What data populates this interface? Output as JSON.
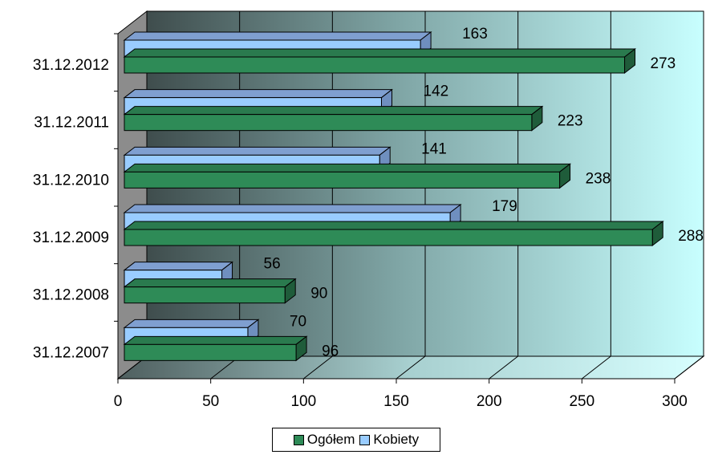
{
  "chart_data": {
    "type": "bar",
    "orientation": "horizontal",
    "three_d": true,
    "categories": [
      "31.12.2007",
      "31.12.2008",
      "31.12.2009",
      "31.12.2010",
      "31.12.2011",
      "31.12.2012"
    ],
    "series": [
      {
        "name": "Ogółem",
        "values": [
          96,
          90,
          288,
          238,
          223,
          273
        ],
        "color": "#2e8b57"
      },
      {
        "name": "Kobiety",
        "values": [
          70,
          56,
          179,
          141,
          142,
          163
        ],
        "color": "#99ccff"
      }
    ],
    "xlim": [
      0,
      300
    ],
    "xticks": [
      "0",
      "50",
      "100",
      "150",
      "200",
      "250",
      "300"
    ],
    "grid": true,
    "legend_position": "bottom",
    "title": "",
    "xlabel": "",
    "ylabel": ""
  },
  "legend": {
    "items": [
      {
        "label": "Ogółem",
        "color": "#2e8b57"
      },
      {
        "label": "Kobiety",
        "color": "#99ccff"
      }
    ]
  }
}
